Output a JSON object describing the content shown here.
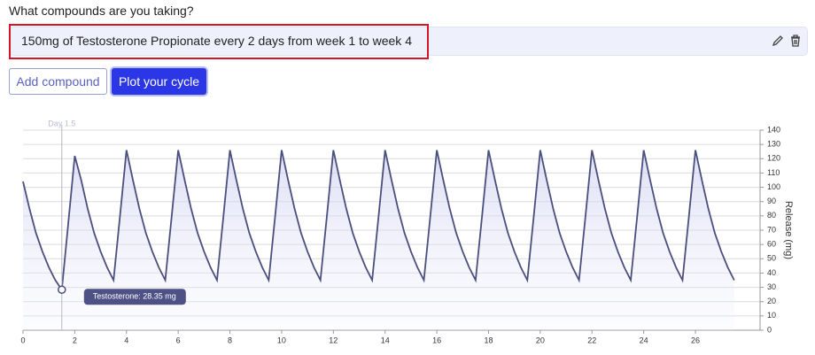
{
  "form": {
    "question": "What compounds are you taking?",
    "compound_entry": "150mg of Testosterone Propionate every 2 days from week 1 to week 4",
    "buttons": [
      "Add compound",
      "Plot your cycle"
    ]
  },
  "chart_data": {
    "type": "line",
    "y_axis_label": "Release (mg)",
    "crosshair_label": "Day 1.5",
    "crosshair_x": 1.5,
    "tooltip": "Testosterone: 28.35 mg",
    "x": [
      0,
      0.25,
      0.5,
      0.75,
      1,
      1.25,
      1.5,
      1.75,
      2,
      2.25,
      2.5,
      2.75,
      3,
      3.25,
      3.5,
      3.75,
      4,
      4.25,
      4.5,
      4.75,
      5,
      5.25,
      5.5,
      5.75,
      6,
      6.25,
      6.5,
      6.75,
      7,
      7.25,
      7.5,
      7.75,
      8,
      8.25,
      8.5,
      8.75,
      9,
      9.25,
      9.5,
      9.75,
      10,
      10.25,
      10.5,
      10.75,
      11,
      11.25,
      11.5,
      11.75,
      12,
      12.25,
      12.5,
      12.75,
      13,
      13.25,
      13.5,
      13.75,
      14,
      14.25,
      14.5,
      14.75,
      15,
      15.25,
      15.5,
      15.75,
      16,
      16.25,
      16.5,
      16.75,
      17,
      17.25,
      17.5,
      17.75,
      18,
      18.25,
      18.5,
      18.75,
      19,
      19.25,
      19.5,
      19.75,
      20,
      20.25,
      20.5,
      20.75,
      21,
      21.25,
      21.5,
      21.75,
      22,
      22.25,
      22.5,
      22.75,
      23,
      23.25,
      23.5,
      23.75,
      24,
      24.25,
      24.5,
      24.75,
      25,
      25.25,
      25.5,
      25.75,
      26,
      26.25,
      26.5,
      26.75,
      27,
      27.25,
      27.5
    ],
    "series": [
      {
        "name": "Testosterone",
        "color": "#4b4f7e",
        "values": [
          104,
          85,
          68,
          55,
          44,
          35,
          28.35,
          75,
          122,
          105,
          85,
          68,
          55,
          44,
          35,
          80,
          126,
          105,
          85,
          68,
          55,
          44,
          35,
          80,
          126,
          105,
          85,
          68,
          55,
          44,
          35,
          80,
          126,
          105,
          85,
          68,
          55,
          44,
          35,
          80,
          126,
          105,
          85,
          68,
          55,
          44,
          35,
          80,
          126,
          105,
          85,
          68,
          55,
          44,
          35,
          80,
          126,
          105,
          85,
          68,
          55,
          44,
          35,
          80,
          126,
          105,
          85,
          68,
          55,
          44,
          35,
          80,
          126,
          105,
          85,
          68,
          55,
          44,
          35,
          80,
          126,
          105,
          85,
          68,
          55,
          44,
          35,
          80,
          126,
          105,
          85,
          68,
          55,
          44,
          35,
          80,
          126,
          105,
          85,
          68,
          55,
          44,
          35,
          80,
          126,
          105,
          85,
          68,
          55,
          44,
          35
        ]
      }
    ],
    "xlim": [
      0,
      28.5
    ],
    "xticks": [
      0,
      2,
      4,
      6,
      8,
      10,
      12,
      14,
      16,
      18,
      20,
      22,
      24,
      26
    ],
    "ylim": [
      0,
      140
    ],
    "yticks": [
      0,
      10,
      20,
      30,
      40,
      50,
      60,
      70,
      80,
      90,
      100,
      110,
      120,
      130,
      140
    ],
    "grid": true
  }
}
